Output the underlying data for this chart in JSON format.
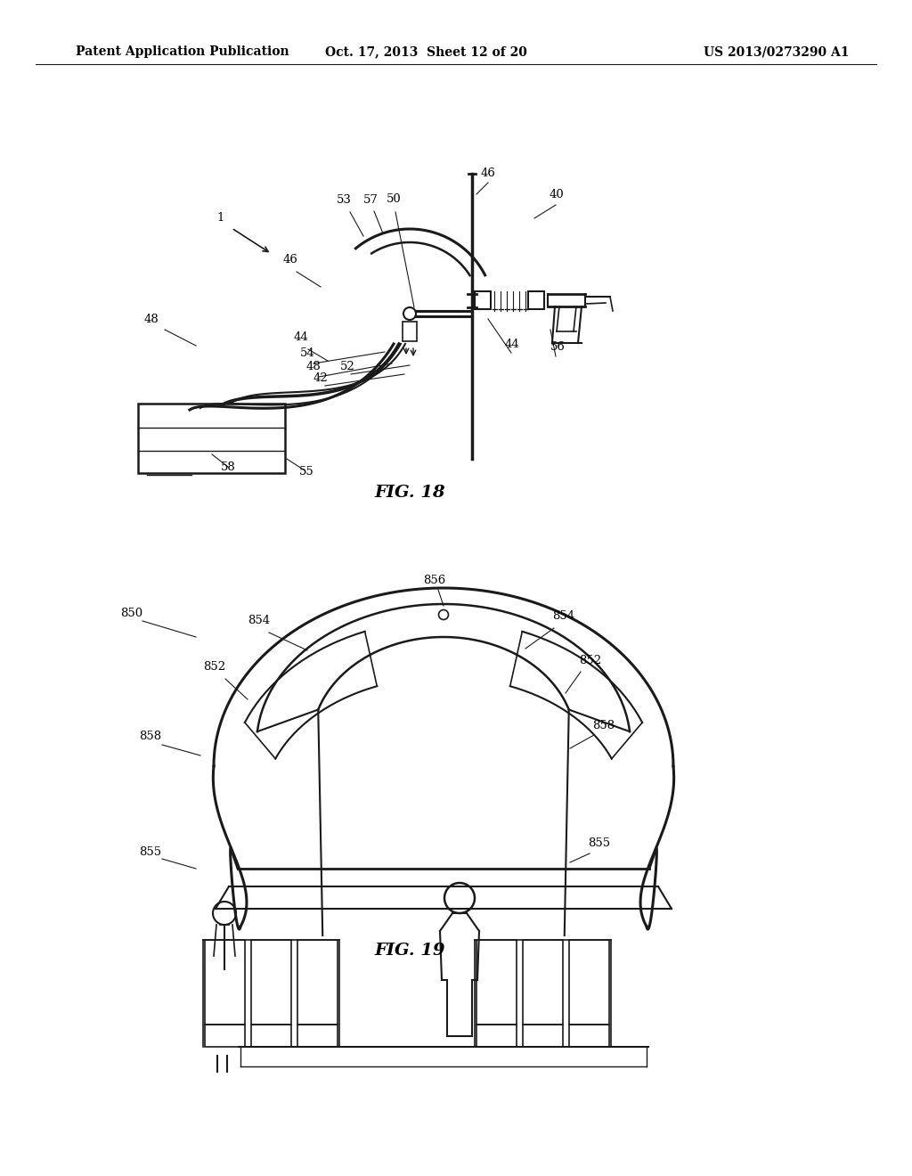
{
  "header_left": "Patent Application Publication",
  "header_middle": "Oct. 17, 2013  Sheet 12 of 20",
  "header_right": "US 2013/0273290 A1",
  "fig18_label": "FIG. 18",
  "fig19_label": "FIG. 19",
  "bg_color": "#ffffff",
  "line_color": "#1a1a1a",
  "text_color": "#000000"
}
